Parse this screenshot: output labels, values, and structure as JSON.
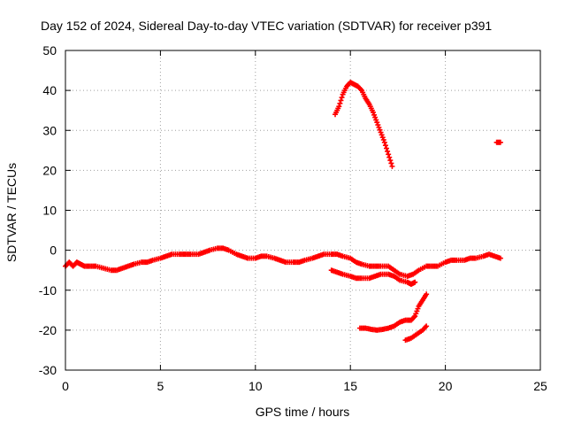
{
  "chart_data": {
    "type": "scatter",
    "title": "Day 152 of 2024, Sidereal Day-to-day VTEC variation (SDTVAR) for receiver p391",
    "xlabel": "GPS time / hours",
    "ylabel": "SDTVAR / TECUs",
    "xlim": [
      0,
      25
    ],
    "ylim": [
      -30,
      50
    ],
    "xticks": [
      0,
      5,
      10,
      15,
      20,
      25
    ],
    "yticks": [
      -30,
      -20,
      -10,
      0,
      10,
      20,
      30,
      40,
      50
    ],
    "grid": true,
    "marker": "+",
    "color": "#ff0000",
    "series": [
      {
        "name": "main band",
        "points": [
          [
            0.0,
            -4
          ],
          [
            0.2,
            -3
          ],
          [
            0.4,
            -4
          ],
          [
            0.6,
            -3
          ],
          [
            0.8,
            -3.5
          ],
          [
            1.0,
            -4
          ],
          [
            1.3,
            -4
          ],
          [
            1.6,
            -4
          ],
          [
            2.0,
            -4.5
          ],
          [
            2.4,
            -5
          ],
          [
            2.7,
            -5
          ],
          [
            3.0,
            -4.5
          ],
          [
            3.3,
            -4
          ],
          [
            3.6,
            -3.5
          ],
          [
            4.0,
            -3
          ],
          [
            4.3,
            -3
          ],
          [
            4.6,
            -2.5
          ],
          [
            5.0,
            -2
          ],
          [
            5.3,
            -1.5
          ],
          [
            5.6,
            -1
          ],
          [
            6.0,
            -1
          ],
          [
            6.3,
            -1
          ],
          [
            6.6,
            -1
          ],
          [
            7.0,
            -1
          ],
          [
            7.3,
            -0.5
          ],
          [
            7.6,
            0
          ],
          [
            8.0,
            0.5
          ],
          [
            8.3,
            0.5
          ],
          [
            8.6,
            0
          ],
          [
            9.0,
            -1
          ],
          [
            9.3,
            -1.5
          ],
          [
            9.6,
            -2
          ],
          [
            10.0,
            -2
          ],
          [
            10.3,
            -1.5
          ],
          [
            10.6,
            -1.5
          ],
          [
            11.0,
            -2
          ],
          [
            11.3,
            -2.5
          ],
          [
            11.6,
            -3
          ],
          [
            12.0,
            -3
          ],
          [
            12.3,
            -3
          ],
          [
            12.6,
            -2.5
          ],
          [
            13.0,
            -2
          ],
          [
            13.3,
            -1.5
          ],
          [
            13.6,
            -1
          ],
          [
            14.0,
            -1
          ],
          [
            14.3,
            -1
          ],
          [
            14.6,
            -1.5
          ],
          [
            15.0,
            -2
          ],
          [
            15.3,
            -3
          ],
          [
            15.6,
            -3.5
          ],
          [
            16.0,
            -4
          ],
          [
            16.3,
            -4
          ],
          [
            16.6,
            -4
          ],
          [
            17.0,
            -4
          ],
          [
            17.3,
            -5
          ],
          [
            17.6,
            -6
          ],
          [
            18.0,
            -6.5
          ],
          [
            18.3,
            -6
          ],
          [
            18.6,
            -5
          ],
          [
            19.0,
            -4
          ],
          [
            19.3,
            -4
          ],
          [
            19.6,
            -4
          ],
          [
            20.0,
            -3
          ],
          [
            20.3,
            -2.5
          ],
          [
            20.6,
            -2.5
          ],
          [
            21.0,
            -2.5
          ],
          [
            21.3,
            -2
          ],
          [
            21.6,
            -2
          ],
          [
            22.0,
            -1.5
          ],
          [
            22.3,
            -1
          ],
          [
            22.6,
            -1.5
          ],
          [
            22.9,
            -2
          ]
        ]
      },
      {
        "name": "secondary band",
        "points": [
          [
            14.0,
            -5
          ],
          [
            14.3,
            -5.5
          ],
          [
            14.6,
            -6
          ],
          [
            15.0,
            -6.5
          ],
          [
            15.3,
            -7
          ],
          [
            15.6,
            -7
          ],
          [
            16.0,
            -7
          ],
          [
            16.3,
            -6.5
          ],
          [
            16.6,
            -6
          ],
          [
            17.0,
            -6
          ],
          [
            17.3,
            -6.5
          ],
          [
            17.6,
            -7.5
          ],
          [
            18.0,
            -8
          ],
          [
            18.2,
            -8.5
          ],
          [
            18.4,
            -8
          ]
        ]
      },
      {
        "name": "arc high",
        "points": [
          [
            14.2,
            34
          ],
          [
            14.4,
            36
          ],
          [
            14.6,
            39
          ],
          [
            14.8,
            41
          ],
          [
            15.0,
            42
          ],
          [
            15.2,
            41.5
          ],
          [
            15.4,
            41
          ],
          [
            15.6,
            40
          ],
          [
            15.8,
            38
          ],
          [
            16.0,
            36.5
          ],
          [
            16.2,
            34.5
          ],
          [
            16.4,
            32
          ],
          [
            16.6,
            29.5
          ],
          [
            16.8,
            27
          ],
          [
            17.0,
            24
          ],
          [
            17.2,
            21
          ]
        ]
      },
      {
        "name": "arc low",
        "points": [
          [
            15.5,
            -19.5
          ],
          [
            15.8,
            -19.5
          ],
          [
            16.1,
            -19.8
          ],
          [
            16.4,
            -20
          ],
          [
            16.7,
            -19.8
          ],
          [
            17.0,
            -19.5
          ],
          [
            17.3,
            -19
          ],
          [
            17.6,
            -18
          ],
          [
            17.9,
            -17.5
          ],
          [
            18.2,
            -17.5
          ],
          [
            18.4,
            -16.5
          ],
          [
            18.6,
            -14
          ],
          [
            18.8,
            -12.5
          ],
          [
            19.0,
            -11
          ]
        ]
      },
      {
        "name": "arc lower",
        "points": [
          [
            17.9,
            -22.5
          ],
          [
            18.2,
            -22
          ],
          [
            18.5,
            -21
          ],
          [
            18.8,
            -20
          ],
          [
            19.0,
            -19
          ]
        ]
      },
      {
        "name": "isolated",
        "points": [
          [
            22.7,
            27
          ],
          [
            22.9,
            27
          ]
        ]
      }
    ]
  }
}
